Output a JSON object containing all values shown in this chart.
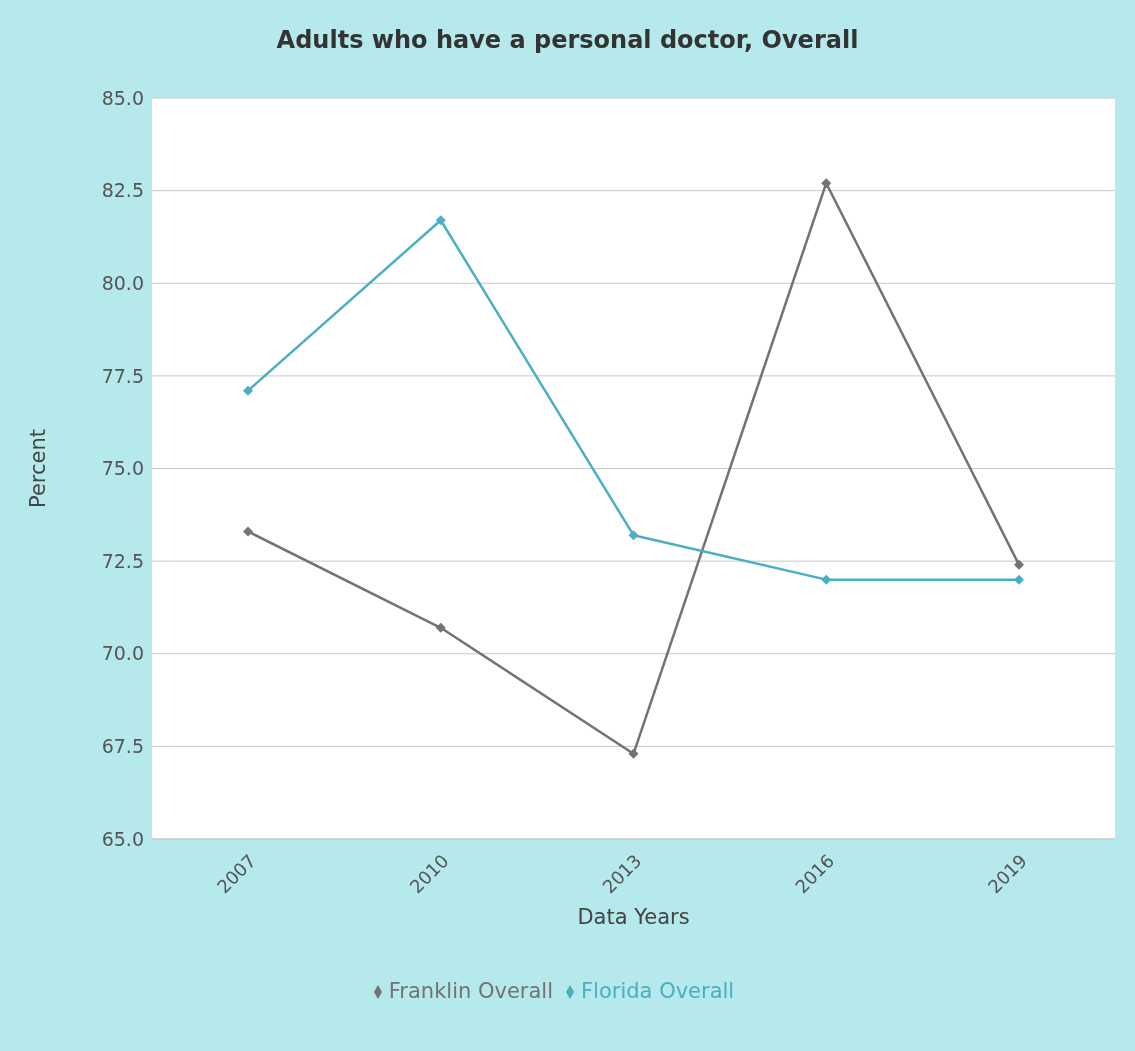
{
  "chart_data": {
    "type": "line",
    "title": "Adults who have a personal doctor, Overall",
    "xlabel": "Data Years",
    "ylabel": "Percent",
    "categories": [
      "2007",
      "2010",
      "2013",
      "2016",
      "2019"
    ],
    "series": [
      {
        "name": "Franklin Overall",
        "color": "#737373",
        "values": [
          73.3,
          70.7,
          67.3,
          82.7,
          72.4
        ]
      },
      {
        "name": "Florida Overall",
        "color": "#4bafc3",
        "values": [
          77.1,
          81.7,
          73.2,
          72.0,
          72.0
        ]
      }
    ],
    "ylim": [
      65,
      85
    ],
    "yticks": [
      {
        "value": 65,
        "label": "65.0"
      },
      {
        "value": 67.5,
        "label": "67.5"
      },
      {
        "value": 70,
        "label": "70.0"
      },
      {
        "value": 72.5,
        "label": "72.5"
      },
      {
        "value": 75,
        "label": "75.0"
      },
      {
        "value": 77.5,
        "label": "77.5"
      },
      {
        "value": 80,
        "label": "80.0"
      },
      {
        "value": 82.5,
        "label": "82.5"
      },
      {
        "value": 85,
        "label": "85.0"
      }
    ],
    "grid": "y",
    "legend": "bottom",
    "marker": "diamond",
    "line_style": "solid"
  }
}
